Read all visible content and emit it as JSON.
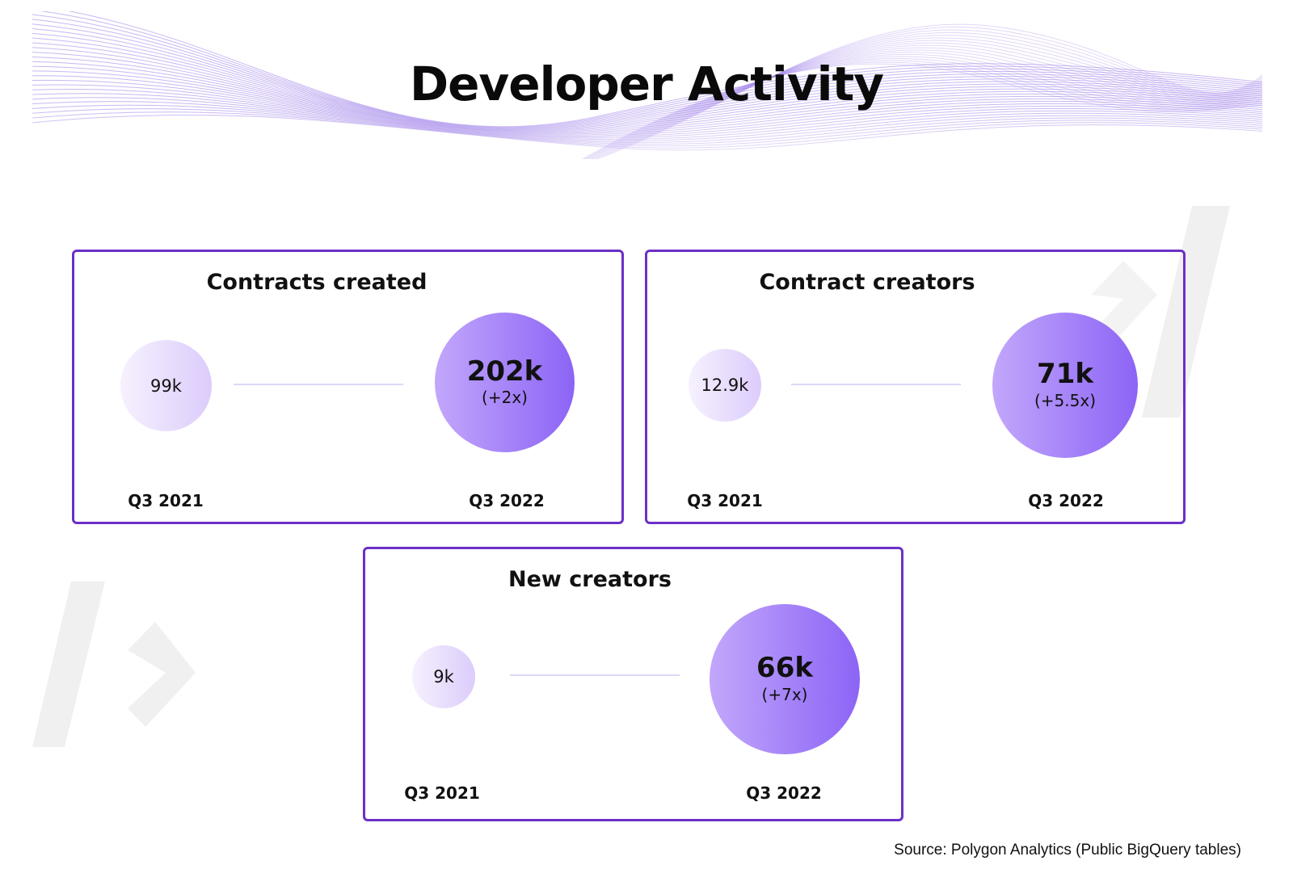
{
  "title": "Developer Activity",
  "source": "Source: Polygon Analytics (Public BigQuery tables)",
  "colors": {
    "border": "#6b2fc7",
    "bubble_small_start": "#f6f1fe",
    "bubble_small_end": "#dcccfb",
    "bubble_big_start": "#c2a7fb",
    "bubble_big_end": "#8c64f6",
    "connector": "#ded6f7",
    "wave_lines": "#9b7be8"
  },
  "chart_data": [
    {
      "type": "bubble-comparison",
      "title": "Contracts created",
      "categories": [
        "Q3 2021",
        "Q3 2022"
      ],
      "values": [
        99000,
        202000
      ],
      "labels": [
        "99k",
        "202k"
      ],
      "growth": "(+2x)"
    },
    {
      "type": "bubble-comparison",
      "title": "Contract creators",
      "categories": [
        "Q3 2021",
        "Q3 2022"
      ],
      "values": [
        12900,
        71000
      ],
      "labels": [
        "12.9k",
        "71k"
      ],
      "growth": "(+5.5x)"
    },
    {
      "type": "bubble-comparison",
      "title": "New creators",
      "categories": [
        "Q3 2021",
        "Q3 2022"
      ],
      "values": [
        9000,
        66000
      ],
      "labels": [
        "9k",
        "66k"
      ],
      "growth": "(+7x)"
    }
  ]
}
